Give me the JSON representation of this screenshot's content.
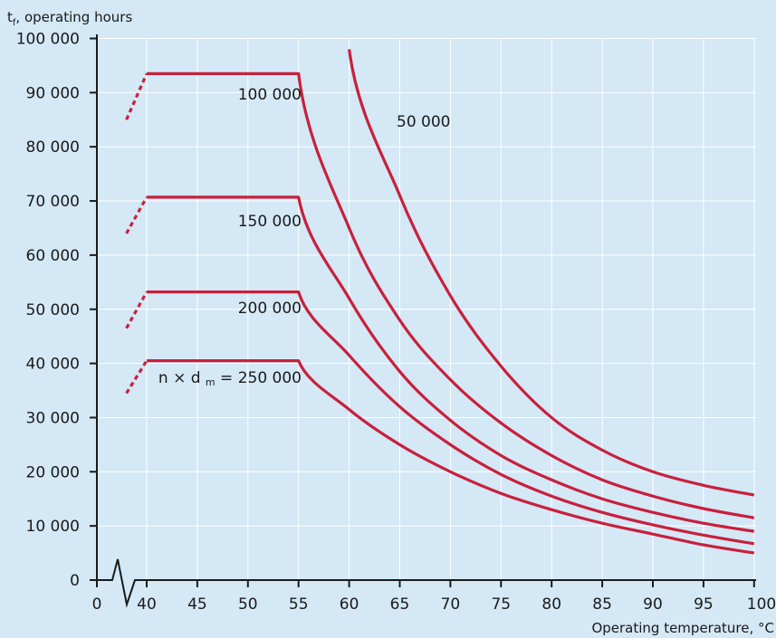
{
  "chart_data": {
    "type": "line",
    "title": "",
    "ylabel": "t",
    "ylabel_sub": "f",
    "ylabel_rest": ", operating hours",
    "xlabel": "Operating temperature, °C",
    "x_ticks": [
      "0",
      "40",
      "45",
      "50",
      "55",
      "60",
      "65",
      "70",
      "75",
      "80",
      "85",
      "90",
      "95",
      "100"
    ],
    "y_ticks": [
      "0",
      "10 000",
      "20 000",
      "30 000",
      "40 000",
      "50 000",
      "60 000",
      "70 000",
      "80 000",
      "90 000",
      "100 000"
    ],
    "xlim": [
      40,
      100
    ],
    "ylim": [
      0,
      100000
    ],
    "x_axis_break": true,
    "grid": true,
    "curve_label_prefix": "n × d",
    "curve_label_sub": "m",
    "curve_label_eq": " = ",
    "series": [
      {
        "name": "50 000",
        "dashed_segment": false,
        "x": [
          60,
          65,
          70,
          75,
          80,
          85,
          90,
          95,
          100
        ],
        "y": [
          98000,
          71000,
          52500,
          39500,
          30000,
          24000,
          20000,
          17500,
          15700
        ]
      },
      {
        "name": "100 000",
        "dashed_segment": true,
        "dashed_start": [
          38,
          85000
        ],
        "x": [
          40,
          55,
          60,
          65,
          70,
          75,
          80,
          85,
          90,
          95,
          100
        ],
        "y": [
          93500,
          93500,
          65000,
          48000,
          37000,
          29000,
          23000,
          18500,
          15500,
          13200,
          11500
        ]
      },
      {
        "name": "150 000",
        "dashed_segment": true,
        "dashed_start": [
          38,
          64000
        ],
        "x": [
          40,
          55,
          60,
          65,
          70,
          75,
          80,
          85,
          90,
          95,
          100
        ],
        "y": [
          70700,
          70700,
          52000,
          38500,
          29500,
          23000,
          18500,
          15000,
          12500,
          10500,
          9000
        ]
      },
      {
        "name": "200 000",
        "dashed_segment": true,
        "dashed_start": [
          38,
          46500
        ],
        "x": [
          40,
          55,
          60,
          65,
          70,
          75,
          80,
          85,
          90,
          95,
          100
        ],
        "y": [
          53200,
          53200,
          41500,
          32000,
          25000,
          19500,
          15500,
          12500,
          10200,
          8300,
          6700
        ]
      },
      {
        "name": "250 000",
        "dashed_segment": true,
        "dashed_start": [
          38,
          34500
        ],
        "x": [
          40,
          55,
          60,
          65,
          70,
          75,
          80,
          85,
          90,
          95,
          100
        ],
        "y": [
          40500,
          40500,
          31500,
          25000,
          20000,
          16000,
          13000,
          10500,
          8500,
          6500,
          5000
        ]
      }
    ],
    "colors": {
      "line": "#c8203c",
      "background": "#d4e8f6",
      "grid": "#ffffff",
      "axis": "#1a1a1a"
    }
  }
}
